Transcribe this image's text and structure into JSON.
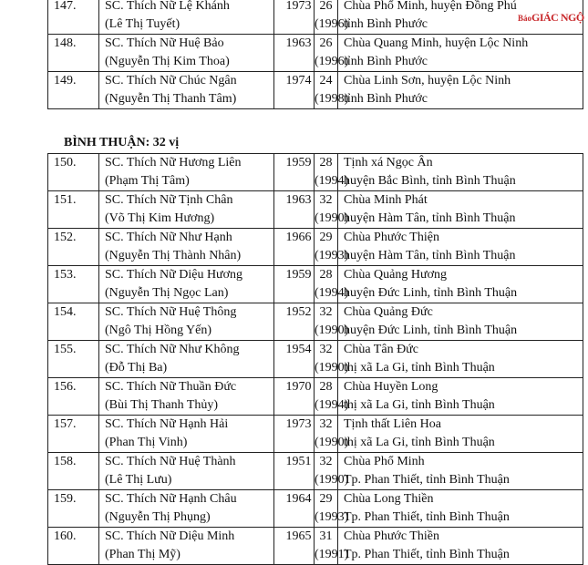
{
  "tables": [
    {
      "rows": [
        [
          "147.",
          "SC. Thích Nữ Lệ Khánh",
          "(Lê Thị Tuyết)",
          "1973",
          "26",
          "(1996)",
          "Chùa Phổ Minh, huyện Đồng Phú",
          "tỉnh Bình Phước"
        ],
        [
          "148.",
          "SC. Thích Nữ Huệ Bảo",
          "(Nguyễn Thị Kim Thoa)",
          "1963",
          "26",
          "(1996)",
          "Chùa Quang Minh, huyện Lộc Ninh",
          "tỉnh Bình Phước"
        ],
        [
          "149.",
          "SC. Thích Nữ Chúc Ngân",
          "(Nguyễn Thị Thanh Tâm)",
          "1974",
          "24",
          "(1998)",
          "Chùa Linh Sơn, huyện Lộc Ninh",
          "tỉnh Bình Phước"
        ]
      ]
    },
    {
      "heading": "BÌNH THUẬN: 32 vị",
      "rows": [
        [
          "150.",
          "SC. Thích Nữ Hương Liên",
          "(Phạm Thị Tâm)",
          "1959",
          "28",
          "(1994)",
          "Tịnh xá Ngọc Ân",
          "huyện Bắc Bình, tỉnh Bình Thuận"
        ],
        [
          "151.",
          "SC. Thích Nữ Tịnh Chân",
          "(Võ Thị Kim Hương)",
          "1963",
          "32",
          "(1990)",
          "Chùa Minh Phát",
          "huyện Hàm Tân, tỉnh Bình Thuận"
        ],
        [
          "152.",
          "SC. Thích Nữ Như Hạnh",
          "(Nguyễn Thị Thành Nhân)",
          "1966",
          "29",
          "(1993)",
          "Chùa Phước Thiện",
          "huyện Hàm Tân, tỉnh Bình Thuận"
        ],
        [
          "153.",
          "SC. Thích Nữ Diệu Hương",
          "(Nguyễn Thị Ngọc Lan)",
          "1959",
          "28",
          "(1994)",
          "Chùa Quảng Hương",
          "huyện Đức Linh, tỉnh Bình Thuận"
        ],
        [
          "154.",
          "SC. Thích Nữ Huệ Thông",
          "(Ngô Thị Hồng Yến)",
          "1952",
          "32",
          "(1990)",
          "Chùa Quảng Đức",
          "huyện Đức Linh, tỉnh Bình Thuận"
        ],
        [
          "155.",
          "SC. Thích Nữ Như Không",
          "(Đỗ Thị Ba)",
          "1954",
          "32",
          "(1990)",
          "Chùa Tân Đức",
          "thị xã La Gi, tỉnh Bình Thuận"
        ],
        [
          "156.",
          "SC. Thích Nữ Thuần Đức",
          "(Bùi Thị Thanh Thủy)",
          "1970",
          "28",
          "(1994)",
          "Chùa Huyền Long",
          "thị xã La Gi, tỉnh Bình Thuận"
        ],
        [
          "157.",
          "SC. Thích Nữ Hạnh Hải",
          "(Phan Thị Vinh)",
          "1973",
          "32",
          "(1990)",
          "Tịnh thất Liên Hoa",
          "thị xã La Gi, tỉnh Bình Thuận"
        ],
        [
          "158.",
          "SC. Thích Nữ Huệ Thành",
          "(Lê Thị Lưu)",
          "1951",
          "32",
          "(1990)",
          "Chùa Phổ Minh",
          "Tp. Phan Thiết, tỉnh Bình Thuận"
        ],
        [
          "159.",
          "SC. Thích Nữ Hạnh Châu",
          "(Nguyễn Thị Phụng)",
          "1964",
          "29",
          "(1993)",
          "Chùa Long Thiền",
          "Tp. Phan Thiết, tỉnh Bình Thuận"
        ],
        [
          "160.",
          "SC. Thích Nữ Diệu Minh",
          "(Phan Thị Mỹ)",
          "1965",
          "31",
          "(1991)",
          "Chùa Phước Thiền",
          "Tp. Phan Thiết, tỉnh Bình Thuận"
        ]
      ]
    }
  ],
  "watermark": {
    "small": "Báo",
    "large": "GIÁC NGỘ"
  }
}
